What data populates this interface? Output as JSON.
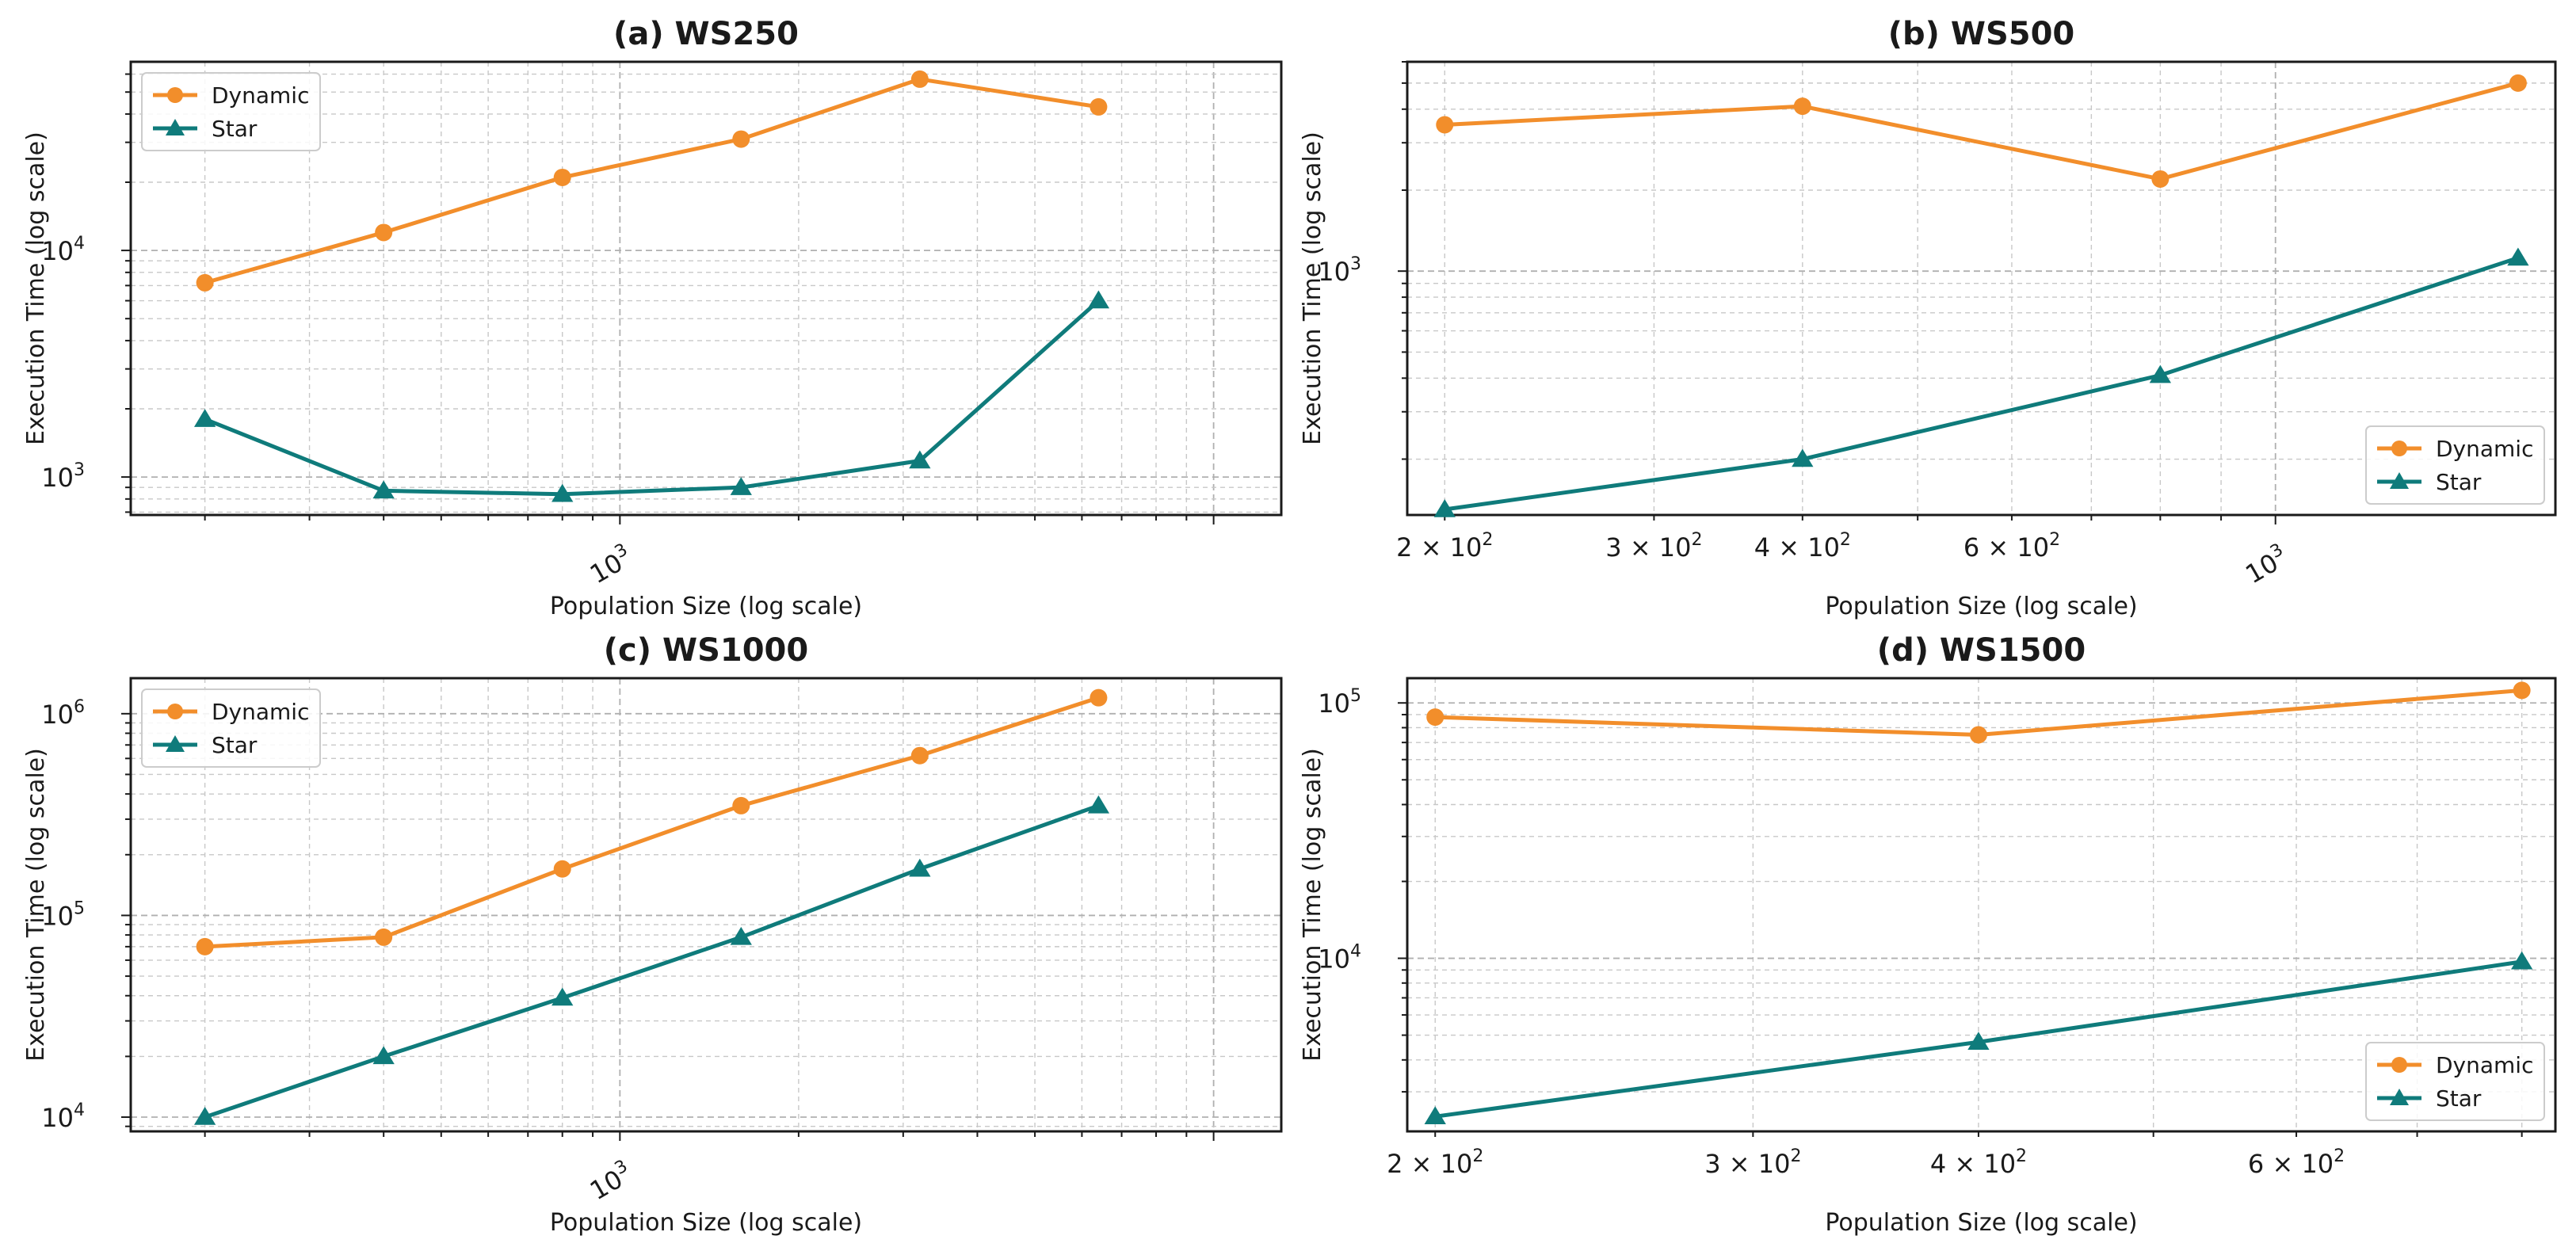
{
  "figure": {
    "background": "#ffffff"
  },
  "colors": {
    "dynamic": "#f28e2b",
    "star": "#0f7b7b"
  },
  "chart_data": [
    {
      "id": "a",
      "type": "line",
      "title": "(a) WS250",
      "xlabel": "Population Size (log scale)",
      "ylabel": "Execution Time (log scale)",
      "xscale": "log",
      "yscale": "log",
      "xlim": [
        150,
        13000
      ],
      "ylim": [
        680,
        68000
      ],
      "x": [
        200,
        400,
        800,
        1600,
        3200,
        6400
      ],
      "xticks": [
        {
          "value": 1000,
          "base": "10",
          "exp": "3"
        }
      ],
      "xtick_rotation": 30,
      "yticks": [
        {
          "value": 1000,
          "base": "10",
          "exp": "3"
        },
        {
          "value": 10000,
          "base": "10",
          "exp": "4"
        }
      ],
      "grid": true,
      "legend_position": "top-left",
      "series": [
        {
          "name": "Dynamic",
          "marker": "circle",
          "values": [
            7200,
            12000,
            21000,
            31000,
            57000,
            43000
          ]
        },
        {
          "name": "Star",
          "marker": "triangle",
          "values": [
            1800,
            870,
            840,
            900,
            1180,
            6000
          ]
        }
      ]
    },
    {
      "id": "b",
      "type": "line",
      "title": "(b) WS500",
      "xlabel": "Population Size (log scale)",
      "ylabel": "Execution Time (log scale)",
      "xscale": "log",
      "yscale": "log",
      "xlim": [
        186,
        1720
      ],
      "ylim": [
        124,
        6000
      ],
      "x": [
        200,
        400,
        800,
        1600
      ],
      "xticks": [
        {
          "value": 200,
          "base": "2 × 10",
          "exp": "2"
        },
        {
          "value": 300,
          "base": "3 × 10",
          "exp": "2"
        },
        {
          "value": 400,
          "base": "4 × 10",
          "exp": "2"
        },
        {
          "value": 600,
          "base": "6 × 10",
          "exp": "2"
        },
        {
          "value": 1000,
          "base": "10",
          "exp": "3"
        }
      ],
      "xtick_rotation_values": [
        1000
      ],
      "yticks": [
        {
          "value": 1000,
          "base": "10",
          "exp": "3"
        }
      ],
      "grid": true,
      "legend_position": "bottom-right",
      "series": [
        {
          "name": "Dynamic",
          "marker": "circle",
          "values": [
            3500,
            4100,
            2200,
            5000
          ]
        },
        {
          "name": "Star",
          "marker": "triangle",
          "values": [
            130,
            200,
            410,
            1120
          ]
        }
      ]
    },
    {
      "id": "c",
      "type": "line",
      "title": "(c) WS1000",
      "xlabel": "Population Size (log scale)",
      "ylabel": "Execution Time (log scale)",
      "xscale": "log",
      "yscale": "log",
      "xlim": [
        150,
        13000
      ],
      "ylim": [
        8500,
        1500000
      ],
      "x": [
        200,
        400,
        800,
        1600,
        3200,
        6400
      ],
      "xticks": [
        {
          "value": 1000,
          "base": "10",
          "exp": "3"
        }
      ],
      "xtick_rotation": 30,
      "yticks": [
        {
          "value": 10000,
          "base": "10",
          "exp": "4"
        },
        {
          "value": 100000,
          "base": "10",
          "exp": "5"
        },
        {
          "value": 1000000,
          "base": "10",
          "exp": "6"
        }
      ],
      "grid": true,
      "legend_position": "top-left",
      "series": [
        {
          "name": "Dynamic",
          "marker": "circle",
          "values": [
            70000,
            78000,
            170000,
            350000,
            620000,
            1200000
          ]
        },
        {
          "name": "Star",
          "marker": "triangle",
          "values": [
            10000,
            20000,
            39000,
            78000,
            170000,
            350000
          ]
        }
      ]
    },
    {
      "id": "d",
      "type": "line",
      "title": "(d) WS1500",
      "xlabel": "Population Size (log scale)",
      "ylabel": "Execution Time (log scale)",
      "xscale": "log",
      "yscale": "log",
      "xlim": [
        193,
        835
      ],
      "ylim": [
        2100,
        125000
      ],
      "x": [
        200,
        400,
        800
      ],
      "xticks": [
        {
          "value": 200,
          "base": "2 × 10",
          "exp": "2"
        },
        {
          "value": 300,
          "base": "3 × 10",
          "exp": "2"
        },
        {
          "value": 400,
          "base": "4 × 10",
          "exp": "2"
        },
        {
          "value": 600,
          "base": "6 × 10",
          "exp": "2"
        }
      ],
      "yticks": [
        {
          "value": 10000,
          "base": "10",
          "exp": "4"
        },
        {
          "value": 100000,
          "base": "10",
          "exp": "5"
        }
      ],
      "grid": true,
      "legend_position": "bottom-right",
      "series": [
        {
          "name": "Dynamic",
          "marker": "circle",
          "values": [
            88000,
            75000,
            112000
          ]
        },
        {
          "name": "Star",
          "marker": "triangle",
          "values": [
            2400,
            4700,
            9700
          ]
        }
      ]
    }
  ]
}
